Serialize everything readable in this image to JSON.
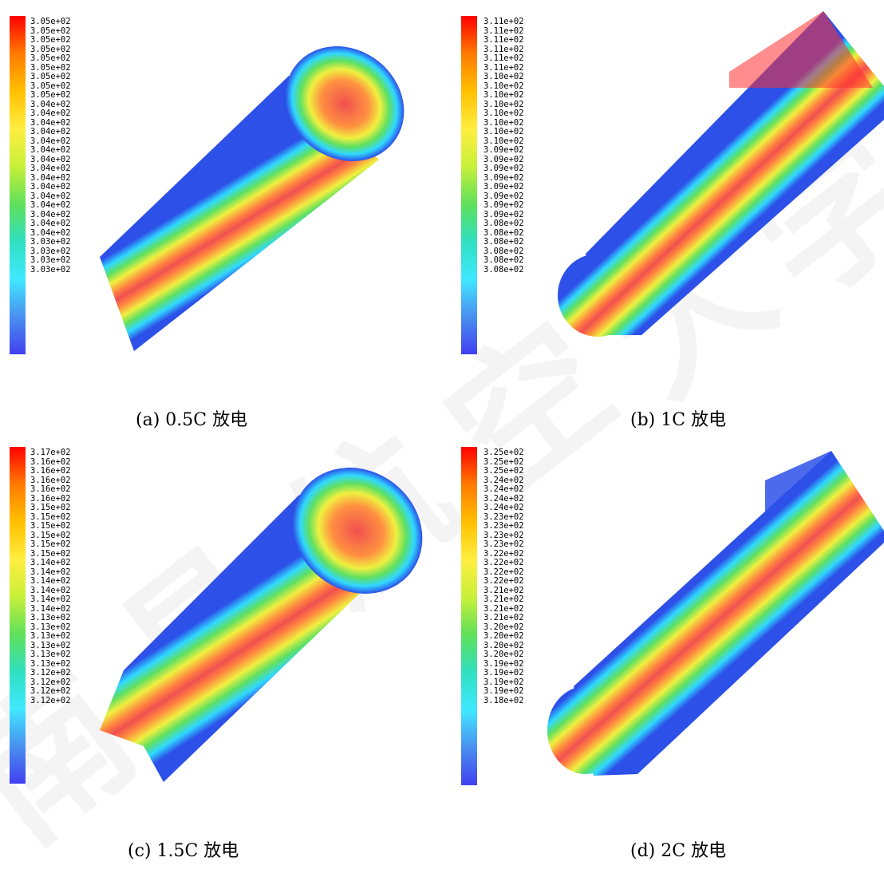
{
  "panels": [
    {
      "caption": "(a) 0.5C 放电",
      "colorbar_labels": [
        "3.05e+02",
        "3.05e+02",
        "3.05e+02",
        "3.05e+02",
        "3.05e+02",
        "3.05e+02",
        "3.05e+02",
        "3.05e+02",
        "3.05e+02",
        "3.04e+02",
        "3.04e+02",
        "3.04e+02",
        "3.04e+02",
        "3.04e+02",
        "3.04e+02",
        "3.04e+02",
        "3.04e+02",
        "3.04e+02",
        "3.04e+02",
        "3.04e+02",
        "3.04e+02",
        "3.04e+02",
        "3.04e+02",
        "3.04e+02",
        "3.03e+02",
        "3.03e+02",
        "3.03e+02",
        "3.03e+02"
      ]
    },
    {
      "caption": "(b) 1C 放电",
      "colorbar_labels": [
        "3.11e+02",
        "3.11e+02",
        "3.11e+02",
        "3.11e+02",
        "3.11e+02",
        "3.11e+02",
        "3.10e+02",
        "3.10e+02",
        "3.10e+02",
        "3.10e+02",
        "3.10e+02",
        "3.10e+02",
        "3.10e+02",
        "3.10e+02",
        "3.09e+02",
        "3.09e+02",
        "3.09e+02",
        "3.09e+02",
        "3.09e+02",
        "3.09e+02",
        "3.09e+02",
        "3.09e+02",
        "3.08e+02",
        "3.08e+02",
        "3.08e+02",
        "3.08e+02",
        "3.08e+02",
        "3.08e+02"
      ]
    },
    {
      "caption": "(c) 1.5C 放电",
      "colorbar_labels": [
        "3.17e+02",
        "3.16e+02",
        "3.16e+02",
        "3.16e+02",
        "3.16e+02",
        "3.16e+02",
        "3.15e+02",
        "3.15e+02",
        "3.15e+02",
        "3.15e+02",
        "3.15e+02",
        "3.15e+02",
        "3.14e+02",
        "3.14e+02",
        "3.14e+02",
        "3.14e+02",
        "3.14e+02",
        "3.14e+02",
        "3.13e+02",
        "3.13e+02",
        "3.13e+02",
        "3.13e+02",
        "3.13e+02",
        "3.13e+02",
        "3.12e+02",
        "3.12e+02",
        "3.12e+02",
        "3.12e+02"
      ]
    },
    {
      "caption": "(d) 2C 放电",
      "colorbar_labels": [
        "3.25e+02",
        "3.25e+02",
        "3.25e+02",
        "3.24e+02",
        "3.24e+02",
        "3.24e+02",
        "3.24e+02",
        "3.23e+02",
        "3.23e+02",
        "3.23e+02",
        "3.23e+02",
        "3.22e+02",
        "3.22e+02",
        "3.22e+02",
        "3.22e+02",
        "3.21e+02",
        "3.21e+02",
        "3.21e+02",
        "3.21e+02",
        "3.20e+02",
        "3.20e+02",
        "3.20e+02",
        "3.20e+02",
        "3.19e+02",
        "3.19e+02",
        "3.19e+02",
        "3.19e+02",
        "3.18e+02"
      ]
    }
  ],
  "colormap": [
    "#ff0000",
    "#ff7a00",
    "#ffc000",
    "#ffee40",
    "#c8f03a",
    "#5fe05a",
    "#30e0c0",
    "#40e8ff",
    "#4a90f0",
    "#4040f0"
  ],
  "watermark": "南昌航空大学"
}
